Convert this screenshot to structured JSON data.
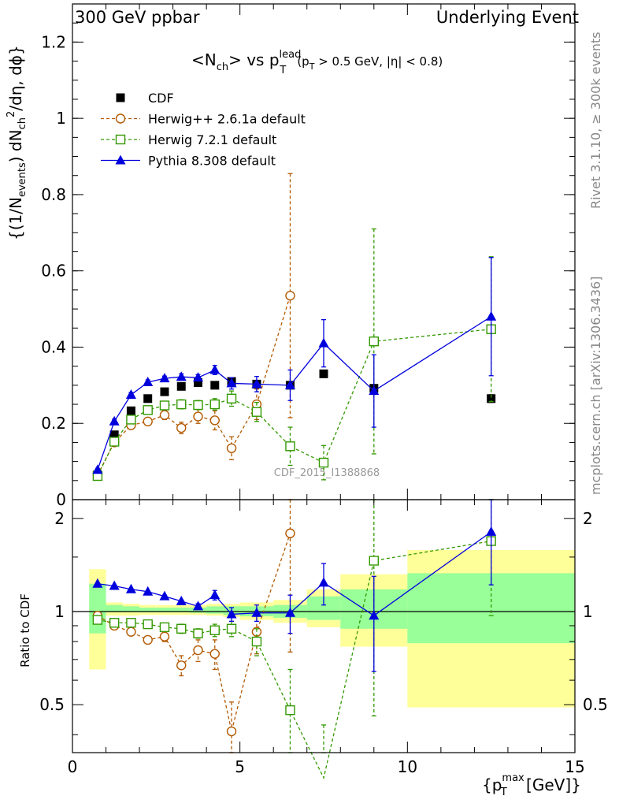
{
  "header": {
    "left": "300 GeV ppbar",
    "right": "Underlying Event"
  },
  "side_labels": {
    "rivet": "Rivet 3.1.10, ≥ 300k events",
    "mcplots": "mcplots.cern.ch [arXiv:1306.3436]"
  },
  "watermark": "CDF_2015_I1388868",
  "colors": {
    "cdf": "#000000",
    "herwigpp": "#b35900",
    "herwig7": "#339900",
    "pythia": "#0000dd",
    "band_outer": "#ffff99",
    "band_inner": "#99ff99"
  },
  "chart_data": [
    {
      "type": "scatter",
      "panel": "main",
      "title": "<N_ch> vs p_T^lead (p_T > 0.5 GeV, |η| < 0.8)",
      "title_parts": {
        "pre": "<N",
        "sub1": "ch",
        "mid": "> vs p",
        "sup2": "lead",
        "sub2": "T",
        "cut": "(p",
        "cut_sub": "T",
        "cut_rest": " > 0.5 GeV, |η| < 0.8)"
      },
      "ylabel": "{(1/N_events) dN_ch^2/dη, dϕ}",
      "ylabel_parts": {
        "a": "{(1/N",
        "a_sub": "events",
        "b": ") dN",
        "b_sub": "ch",
        "b_sup": "2",
        "c": "/dη, dϕ}"
      },
      "xlim": [
        0,
        15
      ],
      "ylim": [
        0,
        1.3
      ],
      "yticks": [
        0,
        0.2,
        0.4,
        0.6,
        0.8,
        1,
        1.2
      ],
      "ytick_labels": [
        "0",
        "0.2",
        "0.4",
        "0.6",
        "0.8",
        "1",
        "1.2"
      ],
      "legend_position": "top-left",
      "series": [
        {
          "name": "CDF",
          "style": "square-filled",
          "x": [
            0.75,
            1.25,
            1.75,
            2.25,
            2.75,
            3.25,
            3.75,
            4.25,
            4.75,
            5.5,
            6.5,
            7.5,
            9.0,
            12.5
          ],
          "y": [
            0.065,
            0.17,
            0.233,
            0.265,
            0.283,
            0.297,
            0.307,
            0.3,
            0.31,
            0.303,
            0.3,
            0.33,
            0.292,
            0.265
          ],
          "err": [
            0.005,
            0.005,
            0.005,
            0.005,
            0.005,
            0.005,
            0.005,
            0.005,
            0.005,
            0.006,
            0.008,
            0.008,
            0.008,
            0.01
          ]
        },
        {
          "name": "Herwig++ 2.6.1a default",
          "style": "circle-open-dashed",
          "x": [
            0.75,
            1.25,
            1.75,
            2.25,
            2.75,
            3.25,
            3.75,
            4.25,
            4.75,
            5.5,
            6.5
          ],
          "y": [
            0.065,
            0.15,
            0.195,
            0.205,
            0.222,
            0.188,
            0.218,
            0.208,
            0.135,
            0.25,
            0.535
          ],
          "err": [
            0.005,
            0.01,
            0.01,
            0.01,
            0.012,
            0.015,
            0.018,
            0.025,
            0.03,
            0.04,
            0.32
          ]
        },
        {
          "name": "Herwig 7.2.1 default",
          "style": "square-open-dashed",
          "x": [
            0.75,
            1.25,
            1.75,
            2.25,
            2.75,
            3.25,
            3.75,
            4.25,
            4.75,
            5.5,
            6.5,
            7.5,
            9.0,
            12.5
          ],
          "y": [
            0.062,
            0.152,
            0.21,
            0.235,
            0.247,
            0.25,
            0.248,
            0.25,
            0.265,
            0.23,
            0.14,
            0.097,
            0.415,
            0.447
          ],
          "err": [
            0.005,
            0.008,
            0.008,
            0.01,
            0.01,
            0.012,
            0.012,
            0.015,
            0.02,
            0.025,
            0.05,
            0.045,
            0.295,
            0.19
          ]
        },
        {
          "name": "Pythia 8.308 default",
          "style": "triangle-filled-solid",
          "x": [
            0.75,
            1.25,
            1.75,
            2.25,
            2.75,
            3.25,
            3.75,
            4.25,
            4.75,
            5.5,
            6.5,
            7.5,
            9.0,
            12.5
          ],
          "y": [
            0.078,
            0.205,
            0.275,
            0.308,
            0.318,
            0.322,
            0.32,
            0.34,
            0.305,
            0.303,
            0.3,
            0.41,
            0.285,
            0.48
          ],
          "err": [
            0.004,
            0.006,
            0.006,
            0.006,
            0.006,
            0.008,
            0.008,
            0.012,
            0.015,
            0.02,
            0.04,
            0.062,
            0.095,
            0.155
          ]
        }
      ]
    },
    {
      "type": "scatter",
      "panel": "ratio",
      "ylabel": "Ratio to CDF",
      "xlabel": "{p_T^max [GeV]}",
      "xlabel_parts": {
        "pre": "{p",
        "sub": "T",
        "sup": "max",
        "post": " [GeV]}"
      },
      "xlim": [
        0,
        15
      ],
      "ylim": [
        0.35,
        2.3
      ],
      "xticks": [
        0,
        5,
        10,
        15
      ],
      "xtick_labels": [
        "0",
        "5",
        "10",
        "15"
      ],
      "yticks": [
        0.5,
        1,
        2
      ],
      "ytick_labels": [
        "0.5",
        "1",
        "2"
      ],
      "reference_line": 1,
      "bands": {
        "x_edges": [
          0.5,
          1.0,
          1.5,
          2.0,
          2.5,
          3.0,
          3.5,
          4.0,
          4.5,
          5.0,
          6.0,
          7.0,
          8.0,
          10.0,
          15.0
        ],
        "outer_low": [
          0.65,
          0.97,
          0.97,
          0.975,
          0.975,
          0.975,
          0.975,
          0.97,
          0.96,
          0.94,
          0.92,
          0.89,
          0.77,
          0.49
        ],
        "outer_high": [
          1.37,
          1.07,
          1.06,
          1.05,
          1.05,
          1.05,
          1.05,
          1.06,
          1.06,
          1.07,
          1.09,
          1.18,
          1.32,
          1.58
        ],
        "inner_low": [
          0.85,
          0.995,
          0.995,
          0.995,
          0.995,
          0.995,
          0.99,
          0.985,
          0.975,
          0.965,
          0.955,
          0.94,
          0.88,
          0.79
        ],
        "inner_high": [
          1.23,
          1.05,
          1.04,
          1.03,
          1.03,
          1.03,
          1.03,
          1.04,
          1.04,
          1.04,
          1.05,
          1.12,
          1.18,
          1.33
        ]
      },
      "series": [
        {
          "name": "Herwig++ 2.6.1a default",
          "x": [
            0.75,
            1.25,
            1.75,
            2.25,
            2.75,
            3.25,
            3.75,
            4.25,
            4.75,
            5.5,
            6.5
          ],
          "y": [
            0.97,
            0.9,
            0.86,
            0.81,
            0.83,
            0.67,
            0.75,
            0.73,
            0.41,
            0.86,
            1.79
          ],
          "err": [
            0.02,
            0.02,
            0.02,
            0.02,
            0.03,
            0.05,
            0.06,
            0.08,
            0.1,
            0.13,
            1.05
          ]
        },
        {
          "name": "Herwig 7.2.1 default",
          "x": [
            0.75,
            1.25,
            1.75,
            2.25,
            2.75,
            3.25,
            3.75,
            4.25,
            4.75,
            5.5,
            6.5,
            7.5,
            9.0,
            12.5
          ],
          "y": [
            0.94,
            0.92,
            0.92,
            0.91,
            0.89,
            0.88,
            0.85,
            0.87,
            0.88,
            0.8,
            0.48,
            0.29,
            1.46,
            1.69
          ],
          "err": [
            0.02,
            0.02,
            0.02,
            0.02,
            0.02,
            0.03,
            0.03,
            0.04,
            0.05,
            0.08,
            0.17,
            0.14,
            1.0,
            0.72
          ]
        },
        {
          "name": "Pythia 8.308 default",
          "x": [
            0.75,
            1.25,
            1.75,
            2.25,
            2.75,
            3.25,
            3.75,
            4.25,
            4.75,
            5.5,
            6.5,
            7.5,
            9.0,
            12.5
          ],
          "y": [
            1.23,
            1.21,
            1.18,
            1.16,
            1.12,
            1.08,
            1.04,
            1.13,
            0.98,
            0.99,
            0.99,
            1.24,
            0.97,
            1.81
          ],
          "err": [
            0.01,
            0.01,
            0.01,
            0.01,
            0.01,
            0.01,
            0.02,
            0.04,
            0.05,
            0.06,
            0.14,
            0.19,
            0.33,
            0.59
          ]
        }
      ]
    }
  ]
}
